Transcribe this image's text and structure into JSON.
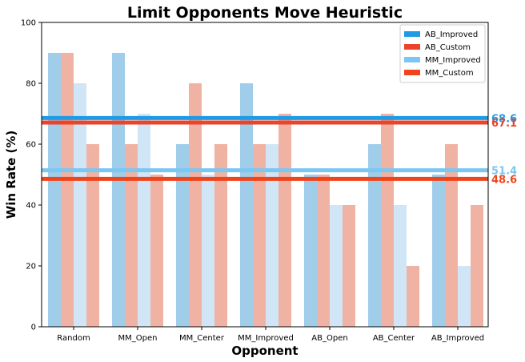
{
  "chart_data": {
    "type": "bar",
    "title": "Limit Opponents Move Heuristic",
    "xlabel": "Opponent",
    "ylabel": "Win Rate (%)",
    "ylim": [
      0,
      100
    ],
    "yticks": [
      0,
      20,
      40,
      60,
      80,
      100
    ],
    "categories": [
      "Random",
      "MM_Open",
      "MM_Center",
      "MM_Improved",
      "AB_Open",
      "AB_Center",
      "AB_Improved"
    ],
    "series": [
      {
        "name": "AB_Improved",
        "values": [
          90,
          90,
          60,
          80,
          50,
          60,
          50
        ],
        "color": "#9fcdea"
      },
      {
        "name": "AB_Custom",
        "values": [
          90,
          60,
          80,
          60,
          50,
          70,
          60
        ],
        "color": "#f0b3a3"
      },
      {
        "name": "MM_Improved",
        "values": [
          80,
          70,
          50,
          60,
          40,
          40,
          20
        ],
        "color": "#d0e6f6"
      },
      {
        "name": "MM_Custom",
        "values": [
          60,
          50,
          60,
          70,
          40,
          20,
          40
        ],
        "color": "#f0b3a3"
      }
    ],
    "reference_lines": [
      {
        "name": "AB_Improved",
        "value": 68.6,
        "label": "68.6",
        "color": "#1f9be6"
      },
      {
        "name": "AB_Custom",
        "value": 67.1,
        "label": "67.1",
        "color": "#e8452c"
      },
      {
        "name": "MM_Improved",
        "value": 51.4,
        "label": "51.4",
        "color": "#7cc6f2"
      },
      {
        "name": "MM_Custom",
        "value": 48.6,
        "label": "48.6",
        "color": "#f0441c"
      }
    ],
    "legend": {
      "placement": "top-right",
      "entries": [
        {
          "label": "AB_Improved",
          "color": "#1f9be6"
        },
        {
          "label": "AB_Custom",
          "color": "#e8452c"
        },
        {
          "label": "MM_Improved",
          "color": "#7cc6f2"
        },
        {
          "label": "MM_Custom",
          "color": "#f0441c"
        }
      ]
    },
    "grid": false
  }
}
